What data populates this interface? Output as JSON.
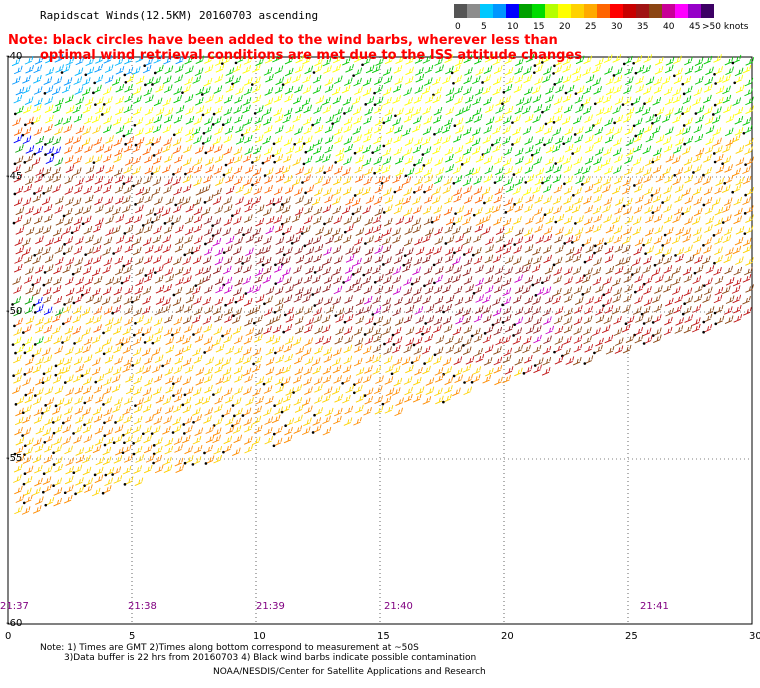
{
  "header": {
    "title": "Rapidscat Winds(12.5KM) 20160703 ascending",
    "note_line1": "Note: black circles have been added to the wind barbs, wherever less than",
    "note_line2": "optimal wind retrieval conditions are met due to the ISS attitude changes"
  },
  "legend": {
    "unit": "knots",
    "swatches": [
      {
        "color": "#555555",
        "label": "0"
      },
      {
        "color": "#8c8c8c",
        "label": ""
      },
      {
        "color": "#00c8ff",
        "label": "5"
      },
      {
        "color": "#0096ff",
        "label": ""
      },
      {
        "color": "#0000ff",
        "label": "10"
      },
      {
        "color": "#00a000",
        "label": ""
      },
      {
        "color": "#00dc00",
        "label": "15"
      },
      {
        "color": "#b4ff00",
        "label": ""
      },
      {
        "color": "#ffff00",
        "label": "20"
      },
      {
        "color": "#ffd200",
        "label": ""
      },
      {
        "color": "#ffaa00",
        "label": "25"
      },
      {
        "color": "#ff6400",
        "label": ""
      },
      {
        "color": "#ff0000",
        "label": "30"
      },
      {
        "color": "#c80000",
        "label": ""
      },
      {
        "color": "#a01414",
        "label": "35"
      },
      {
        "color": "#8b4513",
        "label": ""
      },
      {
        "color": "#c80096",
        "label": "40"
      },
      {
        "color": "#ff00ff",
        "label": ""
      },
      {
        "color": "#9600c8",
        "label": "45"
      },
      {
        "color": "#3c0064",
        "label": ">50 knots"
      }
    ]
  },
  "map": {
    "x_ticks": [
      "0",
      "5",
      "10",
      "15",
      "20",
      "25",
      "30"
    ],
    "y_ticks": [
      "-40",
      "-45",
      "-50",
      "-55",
      "-60"
    ],
    "times": [
      "21:37",
      "21:38",
      "21:39",
      "21:40",
      "21:41"
    ]
  },
  "footer": {
    "line1": "Note: 1) Times are GMT 2)Times along bottom correspond to measurement at ~50S",
    "line2": "3)Data buffer is 22 hrs from 20160703 4) Black wind barbs indicate possible contamination",
    "credit": "NOAA/NESDIS/Center for Satellite Applications and Research"
  }
}
